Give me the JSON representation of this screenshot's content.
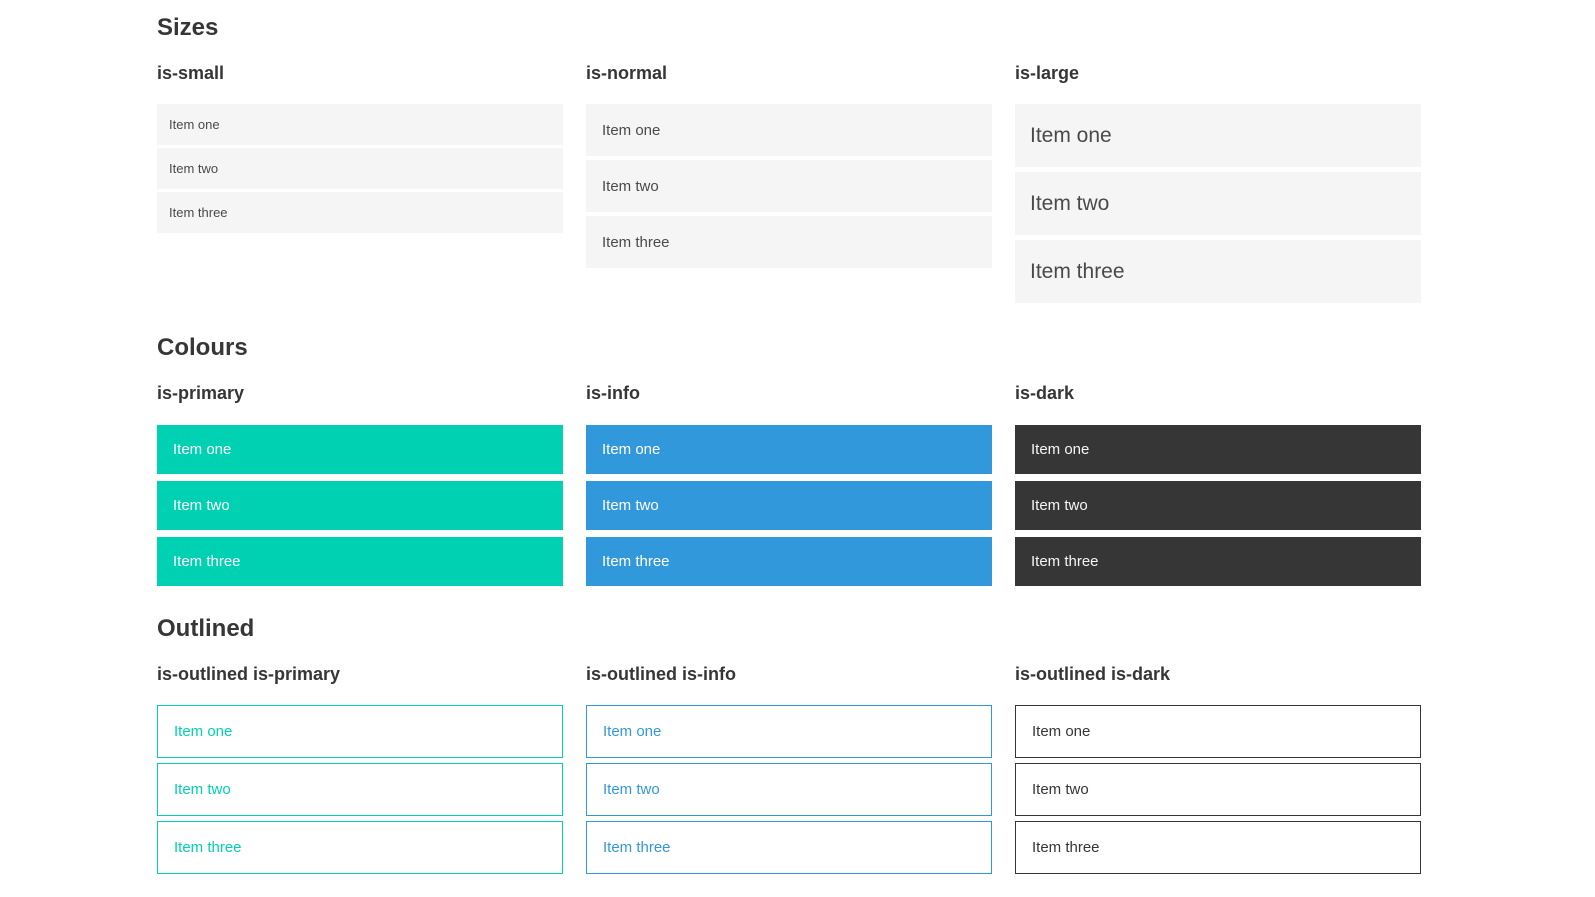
{
  "colors": {
    "primary": "#00d1b2",
    "info": "#3298dc",
    "dark": "#363636",
    "item_bg": "#f5f5f5",
    "item_text": "#4a4a4a",
    "heading_text": "#363636",
    "dark_item_text": "#f5f5f5",
    "light_item_text": "#ffffff"
  },
  "sections": [
    {
      "title": "Sizes",
      "groups": [
        {
          "heading": "is-small",
          "variant": "small",
          "items": [
            "Item one",
            "Item two",
            "Item three"
          ]
        },
        {
          "heading": "is-normal",
          "variant": "normal",
          "items": [
            "Item one",
            "Item two",
            "Item three"
          ]
        },
        {
          "heading": "is-large",
          "variant": "large",
          "items": [
            "Item one",
            "Item two",
            "Item three"
          ]
        }
      ]
    },
    {
      "title": "Colours",
      "groups": [
        {
          "heading": "is-primary",
          "variant": "primary",
          "items": [
            "Item one",
            "Item two",
            "Item three"
          ]
        },
        {
          "heading": "is-info",
          "variant": "info",
          "items": [
            "Item one",
            "Item two",
            "Item three"
          ]
        },
        {
          "heading": "is-dark",
          "variant": "dark",
          "items": [
            "Item one",
            "Item two",
            "Item three"
          ]
        }
      ]
    },
    {
      "title": "Outlined",
      "groups": [
        {
          "heading": "is-outlined is-primary",
          "variant": "outlined-primary",
          "items": [
            "Item one",
            "Item two",
            "Item three"
          ]
        },
        {
          "heading": "is-outlined is-info",
          "variant": "outlined-info",
          "items": [
            "Item one",
            "Item two",
            "Item three"
          ]
        },
        {
          "heading": "is-outlined is-dark",
          "variant": "outlined-dark",
          "items": [
            "Item one",
            "Item two",
            "Item three"
          ]
        }
      ]
    }
  ]
}
